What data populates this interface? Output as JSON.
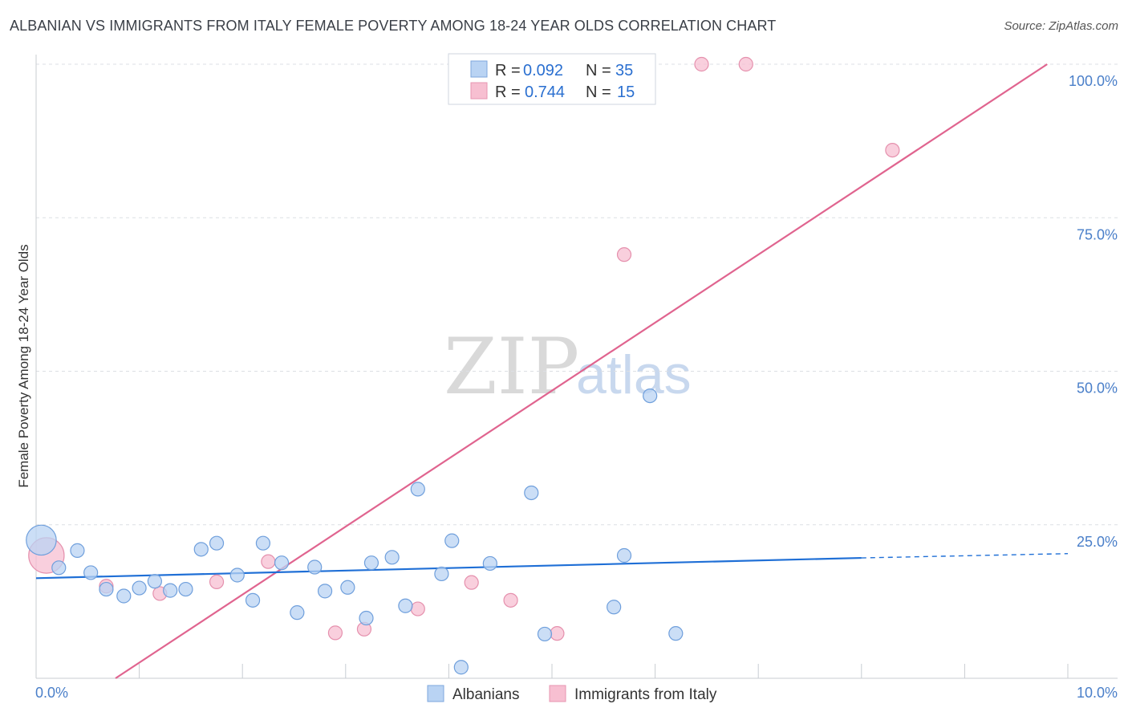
{
  "title": "ALBANIAN VS IMMIGRANTS FROM ITALY FEMALE POVERTY AMONG 18-24 YEAR OLDS CORRELATION CHART",
  "source": "Source: ZipAtlas.com",
  "watermark": {
    "part1": "ZIP",
    "part2": "atlas"
  },
  "colors": {
    "blue": "#1f6fd6",
    "blue_fill": "#b9d3f3",
    "pink": "#e0648f",
    "pink_fill": "#f7bfd1",
    "tick": "#4a7fc9"
  },
  "legend": {
    "r_label": "R =",
    "n_label": "N =",
    "series": [
      {
        "r": "0.092",
        "n": "35"
      },
      {
        "r": "0.744",
        "n": "15"
      }
    ]
  },
  "chart_data": {
    "type": "scatter",
    "title": "ALBANIAN VS IMMIGRANTS FROM ITALY FEMALE POVERTY AMONG 18-24 YEAR OLDS CORRELATION CHART",
    "xlabel": "",
    "ylabel": "Female Poverty Among 18-24 Year Olds",
    "xlim": [
      0,
      10
    ],
    "ylim": [
      0,
      100
    ],
    "x_tick_labels": [
      "0.0%",
      "10.0%"
    ],
    "y_tick_labels": [
      "25.0%",
      "50.0%",
      "75.0%",
      "100.0%"
    ],
    "y_ticks": [
      25,
      50,
      75,
      100
    ],
    "series": [
      {
        "name": "Albanians",
        "points": [
          [
            0.05,
            22.5,
            2.2
          ],
          [
            0.22,
            18.0,
            1
          ],
          [
            0.4,
            20.8,
            1
          ],
          [
            0.53,
            17.2,
            1
          ],
          [
            0.68,
            14.5,
            1
          ],
          [
            0.85,
            13.4,
            1
          ],
          [
            1.0,
            14.7,
            1
          ],
          [
            1.15,
            15.8,
            1
          ],
          [
            1.3,
            14.3,
            1
          ],
          [
            1.45,
            14.5,
            1
          ],
          [
            1.6,
            21.0,
            1
          ],
          [
            1.75,
            22.0,
            1
          ],
          [
            1.95,
            16.8,
            1
          ],
          [
            2.1,
            12.7,
            1
          ],
          [
            2.2,
            22.0,
            1
          ],
          [
            2.38,
            18.8,
            1
          ],
          [
            2.53,
            10.7,
            1
          ],
          [
            2.7,
            18.1,
            1
          ],
          [
            2.8,
            14.2,
            1
          ],
          [
            3.02,
            14.8,
            1
          ],
          [
            3.2,
            9.8,
            1
          ],
          [
            3.25,
            18.8,
            1
          ],
          [
            3.45,
            19.7,
            1
          ],
          [
            3.58,
            11.8,
            1
          ],
          [
            3.7,
            30.8,
            1
          ],
          [
            3.93,
            17.0,
            1
          ],
          [
            4.03,
            22.4,
            1
          ],
          [
            4.12,
            1.8,
            1
          ],
          [
            4.4,
            18.7,
            1
          ],
          [
            4.8,
            30.2,
            1
          ],
          [
            4.93,
            7.2,
            1
          ],
          [
            5.6,
            11.6,
            1
          ],
          [
            5.7,
            20.0,
            1
          ],
          [
            5.95,
            46.0,
            1
          ],
          [
            6.2,
            7.3,
            1
          ]
        ],
        "trend": {
          "x": [
            0,
            8.0
          ],
          "y": [
            16.3,
            19.6
          ]
        },
        "trend_dashed": {
          "x": [
            8.0,
            10.0
          ],
          "y": [
            19.6,
            20.3
          ]
        }
      },
      {
        "name": "Immigrants from Italy",
        "points": [
          [
            0.1,
            20.0,
            2.6
          ],
          [
            0.68,
            15.0,
            1
          ],
          [
            1.2,
            13.8,
            1
          ],
          [
            1.75,
            15.7,
            1
          ],
          [
            2.25,
            19.0,
            1
          ],
          [
            2.9,
            7.4,
            1
          ],
          [
            3.18,
            8.0,
            1
          ],
          [
            3.7,
            11.3,
            1
          ],
          [
            4.22,
            15.6,
            1
          ],
          [
            4.6,
            12.7,
            1
          ],
          [
            5.05,
            7.3,
            1
          ],
          [
            5.7,
            69.0,
            1
          ],
          [
            6.45,
            100.0,
            1
          ],
          [
            6.88,
            100.0,
            1
          ],
          [
            8.3,
            86.0,
            1
          ]
        ],
        "trend": {
          "x": [
            0.77,
            9.8
          ],
          "y": [
            0.0,
            100.0
          ]
        }
      }
    ],
    "legend_entries": [
      "Albanians",
      "Immigrants from Italy"
    ],
    "grid": true
  }
}
